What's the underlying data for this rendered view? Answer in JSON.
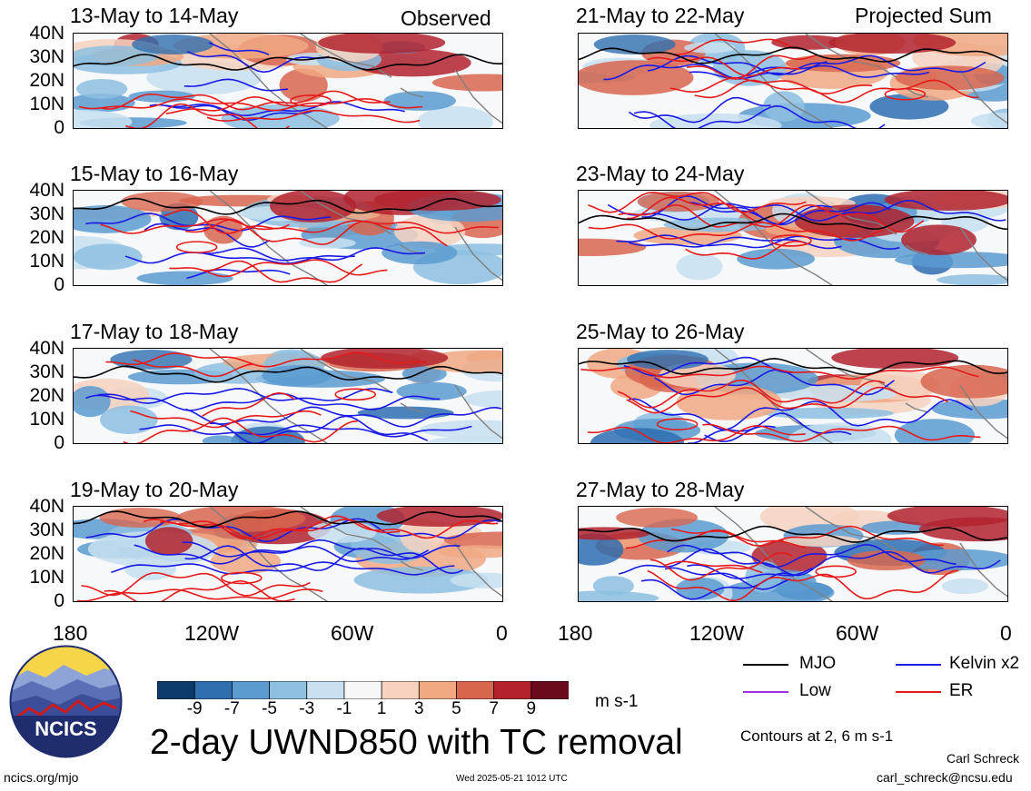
{
  "header": {
    "left_label": "Observed",
    "right_label": "Projected Sum"
  },
  "panels": {
    "observed": [
      {
        "title": "13-May to 14-May"
      },
      {
        "title": "15-May to 16-May"
      },
      {
        "title": "17-May to 18-May"
      },
      {
        "title": "19-May to 20-May"
      }
    ],
    "projected": [
      {
        "title": "21-May to 22-May"
      },
      {
        "title": "23-May to 24-May"
      },
      {
        "title": "25-May to 26-May"
      },
      {
        "title": "27-May to 28-May"
      }
    ]
  },
  "axes": {
    "lat_ticks": [
      "40N",
      "30N",
      "20N",
      "10N",
      "0"
    ],
    "lon_ticks": [
      "180",
      "120W",
      "60W",
      "0"
    ]
  },
  "colorbar": {
    "colors": [
      "#0b3a6b",
      "#2f6fb0",
      "#5b9bd0",
      "#8dbfe0",
      "#c8e0f0",
      "#f7f7f7",
      "#f6d2bf",
      "#f0a882",
      "#d8664f",
      "#b2232e",
      "#6c0a1d"
    ],
    "tick_labels": [
      "-9",
      "-7",
      "-5",
      "-3",
      "-1",
      "1",
      "3",
      "5",
      "7",
      "9"
    ],
    "units": "m s-1"
  },
  "legend": {
    "items": [
      {
        "label": "MJO",
        "color": "#000000"
      },
      {
        "label": "Kelvin x2",
        "color": "#1a1ae6"
      },
      {
        "label": "Low",
        "color": "#9b30e6"
      },
      {
        "label": "ER",
        "color": "#e61a1a"
      }
    ],
    "contours_note": "Contours at 2, 6 m s-1"
  },
  "title": "2-day UWND850 with TC removal",
  "logo_text": "NCICS",
  "footer": {
    "url": "ncics.org/mjo",
    "timestamp": "Wed 2025-05-21 1012 UTC",
    "author": "Carl Schreck",
    "email": "carl_schreck@ncsu.edu"
  }
}
